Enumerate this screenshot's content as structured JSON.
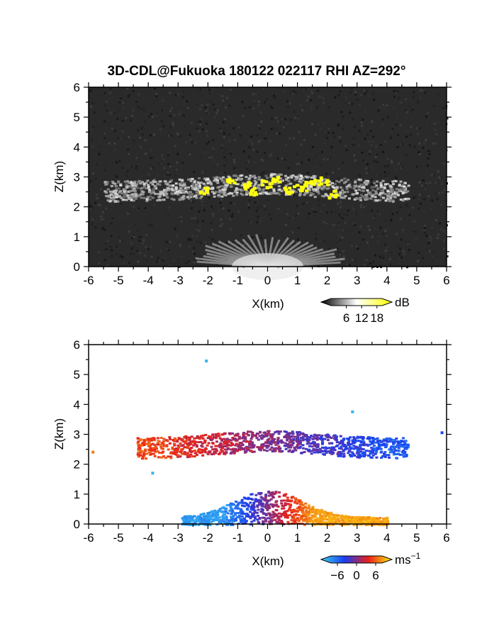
{
  "chart_data": {
    "title": "3D-CDL@Fukuoka 180122 022117 RHI AZ=292°",
    "panels": [
      {
        "type": "heatmap",
        "quantity": "reflectivity",
        "xlabel": "X(km)",
        "ylabel": "Z(km)",
        "xlim": [
          -6,
          6
        ],
        "ylim": [
          0,
          6
        ],
        "xticks": [
          "-6",
          "-5",
          "-4",
          "-3",
          "-2",
          "-1",
          "0",
          "1",
          "2",
          "3",
          "4",
          "5",
          "6"
        ],
        "yticks": [
          "0",
          "1",
          "2",
          "3",
          "4",
          "5",
          "6"
        ],
        "colorbar": {
          "label": "dB",
          "ticks": [
            "6",
            "12",
            "18"
          ],
          "range": [
            0,
            20
          ],
          "colors": [
            "#000000",
            "#ffffff",
            "#ffff00"
          ]
        },
        "background": "#2a2a2a",
        "cloud_layer": {
          "x_range": [
            -6.0,
            4.7
          ],
          "z_range": [
            2.1,
            3.2
          ]
        },
        "strong_echo_cells": [
          {
            "x": -1.3,
            "z": 2.95
          },
          {
            "x": -0.8,
            "z": 2.75
          },
          {
            "x": -0.6,
            "z": 2.55
          },
          {
            "x": -0.1,
            "z": 2.8
          },
          {
            "x": 0.2,
            "z": 2.95
          },
          {
            "x": 0.7,
            "z": 2.6
          },
          {
            "x": 1.1,
            "z": 2.7
          },
          {
            "x": 1.4,
            "z": 2.85
          },
          {
            "x": 1.8,
            "z": 2.9
          },
          {
            "x": 2.1,
            "z": 2.45
          },
          {
            "x": -2.2,
            "z": 2.6
          }
        ],
        "near_ground_fan": {
          "x_range": [
            -2.5,
            2.5
          ],
          "z_max": 1.0
        }
      },
      {
        "type": "heatmap",
        "quantity": "Doppler velocity",
        "xlabel": "X(km)",
        "ylabel": "Z(km)",
        "xlim": [
          -6,
          6
        ],
        "ylim": [
          0,
          6
        ],
        "xticks": [
          "-6",
          "-5",
          "-4",
          "-3",
          "-2",
          "-1",
          "0",
          "1",
          "2",
          "3",
          "4",
          "5",
          "6"
        ],
        "yticks": [
          "0",
          "1",
          "2",
          "3",
          "4",
          "5",
          "6"
        ],
        "colorbar": {
          "label": "ms",
          "label_sup": "−1",
          "ticks": [
            "−6",
            "0",
            "6"
          ],
          "range": [
            -8,
            8
          ],
          "colors": [
            "#3ad0f0",
            "#1a3cf0",
            "#e8201a",
            "#ffee10"
          ]
        },
        "background": "#ffffff",
        "upper_layer": {
          "x_range": [
            -4.4,
            4.7
          ],
          "z_range": [
            2.1,
            3.2
          ],
          "velocity_left": 4,
          "velocity_right": -4
        },
        "low_layer": {
          "x_range": [
            -2.9,
            4.0
          ],
          "z_range": [
            0.0,
            1.1
          ],
          "velocity_negative_x": -6,
          "velocity_positive_x": 6
        },
        "isolated_points": [
          {
            "x": -2.1,
            "z": 5.5,
            "v": -7
          },
          {
            "x": 2.8,
            "z": 3.8,
            "v": -7
          },
          {
            "x": -3.9,
            "z": 1.75,
            "v": -7
          },
          {
            "x": -5.9,
            "z": 2.45,
            "v": 5
          },
          {
            "x": 5.8,
            "z": 3.1,
            "v": -3
          }
        ]
      }
    ]
  }
}
